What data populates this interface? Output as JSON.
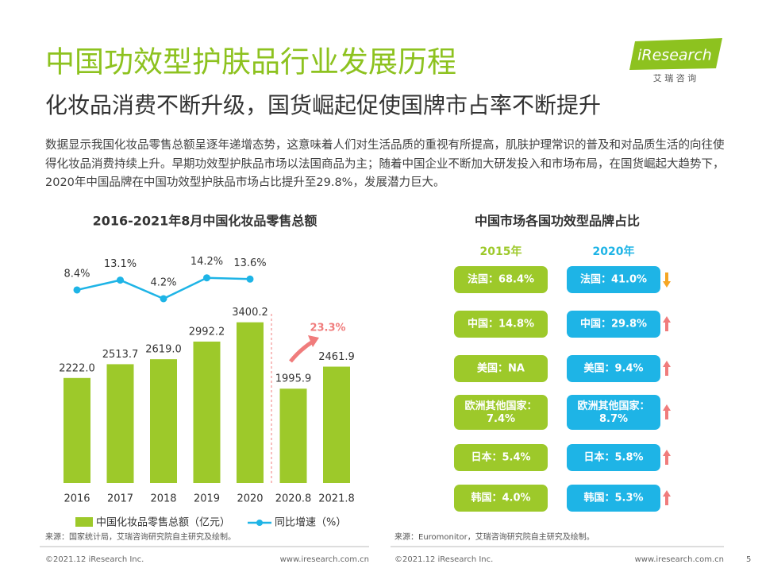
{
  "header": {
    "title": "中国功效型护肤品行业发展历程",
    "subtitle": "化妆品消费不断升级，国货崛起促使国牌市占率不断提升",
    "logo": "iResearch",
    "logo_sub": "艾 瑞 咨 询"
  },
  "body": "数据显示我国化妆品零售总额呈逐年递增态势，这意味着人们对生活品质的重视有所提高，肌肤护理常识的普及和对品质生活的向往使得化妆品消费持续上升。早期功效型护肤品市场以法国商品为主；随着中国企业不断加大研发投入和市场布局，在国货崛起大趋势下，2020年中国品牌在中国功效型护肤品市场占比提升至29.8%，发展潜力巨大。",
  "chart_data": {
    "type": "bar_line",
    "title": "2016-2021年8月中国化妆品零售总额",
    "categories": [
      "2016",
      "2017",
      "2018",
      "2019",
      "2020",
      "2020.8",
      "2021.8"
    ],
    "series": [
      {
        "name": "中国化妆品零售总额（亿元）",
        "color": "#9dc92a",
        "values": [
          2222.0,
          2513.7,
          2619.0,
          2992.2,
          3400.2,
          1995.9,
          2461.9
        ],
        "value_labels": [
          "2222.0",
          "2513.7",
          "2619.0",
          "2992.2",
          "3400.2",
          "1995.9",
          "2461.9"
        ]
      },
      {
        "name": "同比增速（%）",
        "color": "#1eb4e6",
        "axis": "y2",
        "values": [
          8.4,
          13.1,
          4.2,
          14.2,
          13.6,
          null,
          null
        ],
        "value_labels": [
          "8.4%",
          "13.1%",
          "4.2%",
          "14.2%",
          "13.6%",
          null,
          null
        ]
      }
    ],
    "ylim": [
      0,
      4000
    ],
    "y2lim": [
      0,
      16
    ],
    "annotation": "23.3%",
    "annotation_color": "#f07c7c"
  },
  "share": {
    "title": "中国市场各国功效型品牌占比",
    "columns": [
      "2015年",
      "2020年"
    ],
    "rows": [
      [
        "法国：68.4%",
        "法国：41.0%"
      ],
      [
        "中国：14.8%",
        "中国：29.8%"
      ],
      [
        "美国：NA",
        "美国：9.4%"
      ],
      [
        "欧洲其他国家：\n7.4%",
        "欧洲其他国家：\n8.7%"
      ],
      [
        "日本：5.4%",
        "日本：5.8%"
      ],
      [
        "韩国：4.0%",
        "韩国：5.3%"
      ]
    ],
    "trend": [
      "down",
      "up",
      "up",
      "up",
      "up",
      "up"
    ]
  },
  "footer": {
    "source_left": "来源：国家统计局，艾瑞咨询研究院自主研究及绘制。",
    "source_right": "来源：Euromonitor，艾瑞咨询研究院自主研究及绘制。",
    "copyright": "©2021.12 iResearch Inc.",
    "url": "www.iresearch.com.cn",
    "page": "5"
  }
}
